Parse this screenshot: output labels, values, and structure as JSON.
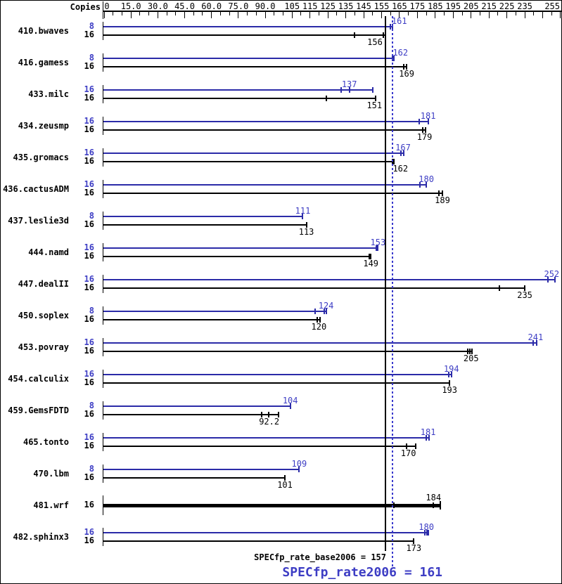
{
  "header": {
    "copies_label": "Copies"
  },
  "colors": {
    "peak_bar": "#2b2ba8",
    "peak_text": "#3d3dc4",
    "base_bar": "#000000",
    "base_text": "#000000",
    "dotted_line": "#3a3acd",
    "solid_line": "#000000"
  },
  "chart_data": {
    "type": "bar",
    "orientation": "horizontal",
    "xlim": [
      0,
      255
    ],
    "tick_step": 5,
    "axis_labels": [
      {
        "value": 0,
        "text": "0"
      },
      {
        "value": 15,
        "text": "15.0"
      },
      {
        "value": 30,
        "text": "30.0"
      },
      {
        "value": 45,
        "text": "45.0"
      },
      {
        "value": 60,
        "text": "60.0"
      },
      {
        "value": 75,
        "text": "75.0"
      },
      {
        "value": 90,
        "text": "90.0"
      },
      {
        "value": 105,
        "text": "105"
      },
      {
        "value": 115,
        "text": "115"
      },
      {
        "value": 125,
        "text": "125"
      },
      {
        "value": 135,
        "text": "135"
      },
      {
        "value": 145,
        "text": "145"
      },
      {
        "value": 155,
        "text": "155"
      },
      {
        "value": 165,
        "text": "165"
      },
      {
        "value": 175,
        "text": "175"
      },
      {
        "value": 185,
        "text": "185"
      },
      {
        "value": 195,
        "text": "195"
      },
      {
        "value": 205,
        "text": "205"
      },
      {
        "value": 215,
        "text": "215"
      },
      {
        "value": 225,
        "text": "225"
      },
      {
        "value": 235,
        "text": "235"
      },
      {
        "value": 255,
        "text": "255",
        "align": "right"
      }
    ],
    "unlabeled_major_ticks": [
      245
    ],
    "benchmarks": [
      {
        "name": "410.bwaves",
        "bars": [
          {
            "series": "peak",
            "copies": "8",
            "value": 161,
            "label": "161",
            "ticks": [
              160
            ],
            "end": 161,
            "label_dx": 10
          },
          {
            "series": "base",
            "copies": "16",
            "value": 156,
            "label": "156",
            "ticks": [
              140,
              156
            ],
            "end": 157,
            "label_dx": -12
          }
        ]
      },
      {
        "name": "416.gamess",
        "bars": [
          {
            "series": "peak",
            "copies": "8",
            "value": 162,
            "label": "162",
            "ticks": [
              161
            ],
            "end": 162,
            "label_dx": 9
          },
          {
            "series": "base",
            "copies": "16",
            "value": 169,
            "label": "169",
            "ticks": [
              167.5
            ],
            "end": 169
          }
        ]
      },
      {
        "name": "433.milc",
        "bars": [
          {
            "series": "peak",
            "copies": "16",
            "value": 137,
            "label": "137",
            "ticks": [
              132.5,
              137
            ],
            "end": 150
          },
          {
            "series": "base",
            "copies": "16",
            "value": 151,
            "label": "151",
            "ticks": [
              124
            ],
            "end": 151.5
          }
        ]
      },
      {
        "name": "434.zeusmp",
        "bars": [
          {
            "series": "peak",
            "copies": "16",
            "value": 181,
            "label": "181",
            "ticks": [
              176
            ],
            "end": 181
          },
          {
            "series": "base",
            "copies": "16",
            "value": 179,
            "label": "179",
            "ticks": [
              178
            ],
            "end": 179.5
          }
        ]
      },
      {
        "name": "435.gromacs",
        "bars": [
          {
            "series": "peak",
            "copies": "16",
            "value": 167,
            "label": "167",
            "ticks": [
              166
            ],
            "end": 167.5
          },
          {
            "series": "base",
            "copies": "16",
            "value": 162,
            "label": "162",
            "ticks": [
              161
            ],
            "end": 162,
            "label_dx": 9
          }
        ]
      },
      {
        "name": "436.cactusADM",
        "bars": [
          {
            "series": "peak",
            "copies": "16",
            "value": 180,
            "label": "180",
            "ticks": [
              176.5
            ],
            "end": 180
          },
          {
            "series": "base",
            "copies": "16",
            "value": 189,
            "label": "189",
            "ticks": [
              187
            ],
            "end": 189
          }
        ]
      },
      {
        "name": "437.leslie3d",
        "bars": [
          {
            "series": "peak",
            "copies": "8",
            "value": 111,
            "label": "111",
            "ticks": [],
            "end": 111
          },
          {
            "series": "base",
            "copies": "16",
            "value": 113,
            "label": "113",
            "ticks": [],
            "end": 113
          }
        ]
      },
      {
        "name": "444.namd",
        "bars": [
          {
            "series": "peak",
            "copies": "16",
            "value": 153,
            "label": "153",
            "ticks": [
              152
            ],
            "end": 153
          },
          {
            "series": "base",
            "copies": "16",
            "value": 149,
            "label": "149",
            "ticks": [
              148
            ],
            "end": 149
          }
        ]
      },
      {
        "name": "447.dealII",
        "bars": [
          {
            "series": "peak",
            "copies": "16",
            "value": 252,
            "label": "252",
            "ticks": [
              248
            ],
            "end": 252,
            "label_dx": -5
          },
          {
            "series": "base",
            "copies": "16",
            "value": 235,
            "label": "235",
            "ticks": [
              221
            ],
            "end": 235
          }
        ]
      },
      {
        "name": "450.soplex",
        "bars": [
          {
            "series": "peak",
            "copies": "8",
            "value": 124,
            "label": "124",
            "ticks": [
              118,
              123
            ],
            "end": 124
          },
          {
            "series": "base",
            "copies": "16",
            "value": 120,
            "label": "120",
            "ticks": [
              119
            ],
            "end": 120.5
          }
        ]
      },
      {
        "name": "453.povray",
        "bars": [
          {
            "series": "peak",
            "copies": "16",
            "value": 241,
            "label": "241",
            "ticks": [
              239.5
            ],
            "end": 241.5
          },
          {
            "series": "base",
            "copies": "16",
            "value": 205,
            "label": "205",
            "ticks": [
              203,
              204.5
            ],
            "end": 205.5
          }
        ]
      },
      {
        "name": "454.calculix",
        "bars": [
          {
            "series": "peak",
            "copies": "16",
            "value": 194,
            "label": "194",
            "ticks": [
              192.5
            ],
            "end": 194
          },
          {
            "series": "base",
            "copies": "16",
            "value": 193,
            "label": "193",
            "ticks": [],
            "end": 193
          }
        ]
      },
      {
        "name": "459.GemsFDTD",
        "bars": [
          {
            "series": "peak",
            "copies": "8",
            "value": 104,
            "label": "104",
            "ticks": [],
            "end": 104
          },
          {
            "series": "base",
            "copies": "16",
            "value": 92.2,
            "label": "92.2",
            "ticks": [
              88,
              92
            ],
            "end": 97.5
          }
        ]
      },
      {
        "name": "465.tonto",
        "bars": [
          {
            "series": "peak",
            "copies": "16",
            "value": 181,
            "label": "181",
            "ticks": [
              180
            ],
            "end": 181.5
          },
          {
            "series": "base",
            "copies": "16",
            "value": 170,
            "label": "170",
            "ticks": [
              169
            ],
            "end": 174
          }
        ]
      },
      {
        "name": "470.lbm",
        "bars": [
          {
            "series": "peak",
            "copies": "8",
            "value": 109,
            "label": "109",
            "ticks": [],
            "end": 109
          },
          {
            "series": "base",
            "copies": "16",
            "value": 101,
            "label": "101",
            "ticks": [],
            "end": 101
          }
        ]
      },
      {
        "name": "481.wrf",
        "bars": [
          {
            "series": "base",
            "single": true,
            "copies": "16",
            "value": 184,
            "label": "184",
            "ticks": [
              162,
              184
            ],
            "end": 188
          }
        ]
      },
      {
        "name": "482.sphinx3",
        "bars": [
          {
            "series": "peak",
            "copies": "16",
            "value": 180,
            "label": "180",
            "ticks": [
              179,
              180.5
            ],
            "end": 181
          },
          {
            "series": "base",
            "copies": "16",
            "value": 173,
            "label": "173",
            "ticks": [],
            "end": 173
          }
        ]
      }
    ],
    "reference_lines": [
      {
        "series": "base",
        "value": 157,
        "style": "solid"
      },
      {
        "series": "peak",
        "value": 161,
        "style": "dotted"
      }
    ]
  },
  "summary": {
    "base_label": "SPECfp_rate_base2006 = 157",
    "peak_label": "SPECfp_rate2006 = 161"
  }
}
